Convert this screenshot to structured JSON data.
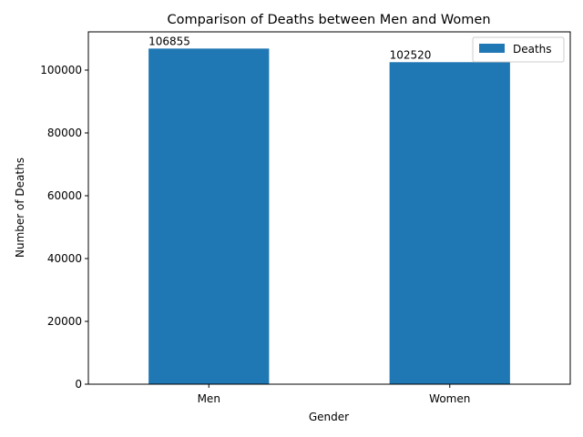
{
  "chart_data": {
    "type": "bar",
    "title": "Comparison of Deaths between Men and Women",
    "xlabel": "Gender",
    "ylabel": "Number of Deaths",
    "categories": [
      "Men",
      "Women"
    ],
    "series": [
      {
        "name": "Deaths",
        "values": [
          106855,
          102520
        ],
        "color": "#1f77b4"
      }
    ],
    "ylim": [
      0,
      112172
    ],
    "yticks": [
      0,
      20000,
      40000,
      60000,
      80000,
      100000
    ],
    "ytick_labels": [
      "0",
      "20000",
      "40000",
      "60000",
      "80000",
      "100000"
    ],
    "value_labels": [
      "106855",
      "102520"
    ],
    "grid": false,
    "legend": {
      "position": "top-right"
    }
  }
}
